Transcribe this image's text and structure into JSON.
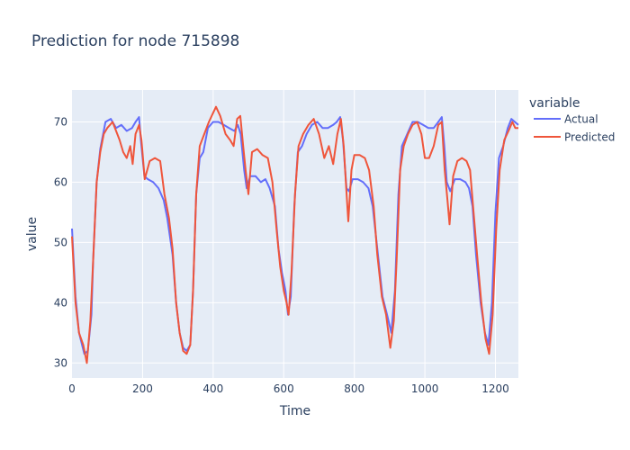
{
  "chart_data": {
    "type": "line",
    "title": "Prediction for node 715898",
    "xlabel": "Time",
    "ylabel": "value",
    "xlim": [
      0,
      1265
    ],
    "ylim": [
      27.5,
      75.3
    ],
    "x_ticks": [
      0,
      200,
      400,
      600,
      800,
      1000,
      1200
    ],
    "y_ticks": [
      30,
      40,
      50,
      60,
      70
    ],
    "grid": true,
    "legend_title": "variable",
    "legend_position": "right",
    "series": [
      {
        "name": "Actual",
        "color": "#636efa",
        "points": [
          [
            0,
            52.3
          ],
          [
            10,
            41
          ],
          [
            20,
            35
          ],
          [
            35,
            31.5
          ],
          [
            45,
            32
          ],
          [
            55,
            38
          ],
          [
            60,
            47
          ],
          [
            70,
            60
          ],
          [
            80,
            65.5
          ],
          [
            85,
            67
          ],
          [
            95,
            70
          ],
          [
            110,
            70.5
          ],
          [
            125,
            69
          ],
          [
            140,
            69.5
          ],
          [
            155,
            68.5
          ],
          [
            170,
            69
          ],
          [
            180,
            70
          ],
          [
            190,
            70.8
          ],
          [
            195,
            67
          ],
          [
            205,
            61
          ],
          [
            215,
            60.5
          ],
          [
            230,
            60
          ],
          [
            245,
            59
          ],
          [
            260,
            57
          ],
          [
            270,
            54
          ],
          [
            285,
            48
          ],
          [
            295,
            40
          ],
          [
            305,
            35
          ],
          [
            315,
            32.5
          ],
          [
            325,
            32
          ],
          [
            335,
            33
          ],
          [
            343,
            42
          ],
          [
            352,
            58
          ],
          [
            362,
            64
          ],
          [
            372,
            65
          ],
          [
            385,
            69
          ],
          [
            400,
            70
          ],
          [
            415,
            70
          ],
          [
            430,
            69.5
          ],
          [
            445,
            69
          ],
          [
            460,
            68.5
          ],
          [
            470,
            69.5
          ],
          [
            478,
            68
          ],
          [
            488,
            62
          ],
          [
            495,
            59
          ],
          [
            505,
            61
          ],
          [
            520,
            61
          ],
          [
            535,
            60
          ],
          [
            548,
            60.5
          ],
          [
            560,
            59
          ],
          [
            575,
            56
          ],
          [
            585,
            49
          ],
          [
            595,
            45
          ],
          [
            605,
            42
          ],
          [
            612,
            38
          ],
          [
            620,
            41
          ],
          [
            630,
            56
          ],
          [
            640,
            65
          ],
          [
            652,
            66
          ],
          [
            665,
            68
          ],
          [
            680,
            69.5
          ],
          [
            695,
            70
          ],
          [
            710,
            69
          ],
          [
            725,
            69
          ],
          [
            740,
            69.5
          ],
          [
            750,
            70
          ],
          [
            760,
            70.8
          ],
          [
            768,
            67
          ],
          [
            778,
            59
          ],
          [
            785,
            58.5
          ],
          [
            795,
            60.5
          ],
          [
            810,
            60.5
          ],
          [
            825,
            60
          ],
          [
            840,
            59
          ],
          [
            852,
            56
          ],
          [
            865,
            49
          ],
          [
            880,
            41
          ],
          [
            893,
            38
          ],
          [
            905,
            35
          ],
          [
            915,
            42
          ],
          [
            925,
            58
          ],
          [
            935,
            66
          ],
          [
            950,
            68
          ],
          [
            965,
            70
          ],
          [
            980,
            70
          ],
          [
            995,
            69.5
          ],
          [
            1010,
            69
          ],
          [
            1025,
            69
          ],
          [
            1038,
            70
          ],
          [
            1048,
            70.8
          ],
          [
            1055,
            66
          ],
          [
            1062,
            60
          ],
          [
            1072,
            58.5
          ],
          [
            1085,
            60.5
          ],
          [
            1100,
            60.5
          ],
          [
            1115,
            60
          ],
          [
            1125,
            59
          ],
          [
            1135,
            56
          ],
          [
            1145,
            48
          ],
          [
            1158,
            40
          ],
          [
            1170,
            35
          ],
          [
            1180,
            33
          ],
          [
            1190,
            40
          ],
          [
            1200,
            55
          ],
          [
            1210,
            64
          ],
          [
            1222,
            66
          ],
          [
            1235,
            69
          ],
          [
            1245,
            70.5
          ],
          [
            1255,
            70
          ],
          [
            1265,
            69.5
          ]
        ]
      },
      {
        "name": "Predicted",
        "color": "#ef553b",
        "points": [
          [
            0,
            51
          ],
          [
            10,
            40
          ],
          [
            20,
            35
          ],
          [
            32,
            33
          ],
          [
            42,
            30
          ],
          [
            52,
            37
          ],
          [
            60,
            47
          ],
          [
            70,
            60
          ],
          [
            80,
            65
          ],
          [
            90,
            68
          ],
          [
            100,
            69
          ],
          [
            115,
            70
          ],
          [
            125,
            68.5
          ],
          [
            135,
            67
          ],
          [
            145,
            65
          ],
          [
            155,
            64
          ],
          [
            165,
            66
          ],
          [
            172,
            63
          ],
          [
            180,
            68
          ],
          [
            190,
            69.5
          ],
          [
            197,
            67
          ],
          [
            206,
            60.5
          ],
          [
            220,
            63.5
          ],
          [
            235,
            64
          ],
          [
            250,
            63.5
          ],
          [
            262,
            58
          ],
          [
            275,
            54
          ],
          [
            285,
            49
          ],
          [
            295,
            40
          ],
          [
            305,
            35
          ],
          [
            315,
            32
          ],
          [
            325,
            31.5
          ],
          [
            335,
            33
          ],
          [
            343,
            42
          ],
          [
            352,
            58
          ],
          [
            362,
            66
          ],
          [
            375,
            68
          ],
          [
            388,
            70
          ],
          [
            400,
            71.5
          ],
          [
            408,
            72.5
          ],
          [
            420,
            71
          ],
          [
            435,
            68
          ],
          [
            448,
            67
          ],
          [
            458,
            66
          ],
          [
            468,
            70.5
          ],
          [
            477,
            71
          ],
          [
            485,
            66
          ],
          [
            492,
            62
          ],
          [
            500,
            58
          ],
          [
            510,
            65
          ],
          [
            525,
            65.5
          ],
          [
            540,
            64.5
          ],
          [
            555,
            64
          ],
          [
            568,
            60
          ],
          [
            580,
            52
          ],
          [
            590,
            46
          ],
          [
            600,
            42
          ],
          [
            608,
            40
          ],
          [
            614,
            38
          ],
          [
            622,
            45
          ],
          [
            632,
            58
          ],
          [
            642,
            66
          ],
          [
            655,
            68
          ],
          [
            670,
            69.5
          ],
          [
            685,
            70.5
          ],
          [
            700,
            68
          ],
          [
            715,
            64
          ],
          [
            728,
            66
          ],
          [
            740,
            63
          ],
          [
            752,
            68
          ],
          [
            762,
            70.5
          ],
          [
            770,
            66
          ],
          [
            777,
            59
          ],
          [
            783,
            53.5
          ],
          [
            792,
            62
          ],
          [
            800,
            64.5
          ],
          [
            815,
            64.5
          ],
          [
            830,
            64
          ],
          [
            842,
            62
          ],
          [
            855,
            56
          ],
          [
            865,
            48
          ],
          [
            878,
            41
          ],
          [
            890,
            38
          ],
          [
            902,
            32.5
          ],
          [
            912,
            37
          ],
          [
            920,
            47
          ],
          [
            930,
            62
          ],
          [
            940,
            66
          ],
          [
            952,
            68
          ],
          [
            965,
            69.5
          ],
          [
            978,
            70
          ],
          [
            990,
            68
          ],
          [
            1000,
            64
          ],
          [
            1012,
            64
          ],
          [
            1025,
            66
          ],
          [
            1038,
            69.5
          ],
          [
            1048,
            70
          ],
          [
            1056,
            62
          ],
          [
            1064,
            57
          ],
          [
            1070,
            53
          ],
          [
            1080,
            61
          ],
          [
            1092,
            63.5
          ],
          [
            1105,
            64
          ],
          [
            1118,
            63.5
          ],
          [
            1128,
            62
          ],
          [
            1138,
            55
          ],
          [
            1148,
            48
          ],
          [
            1160,
            40
          ],
          [
            1172,
            34
          ],
          [
            1182,
            31.5
          ],
          [
            1192,
            38
          ],
          [
            1202,
            52
          ],
          [
            1212,
            62
          ],
          [
            1225,
            67
          ],
          [
            1237,
            68.5
          ],
          [
            1248,
            70
          ],
          [
            1256,
            69
          ],
          [
            1265,
            69
          ]
        ]
      }
    ]
  }
}
